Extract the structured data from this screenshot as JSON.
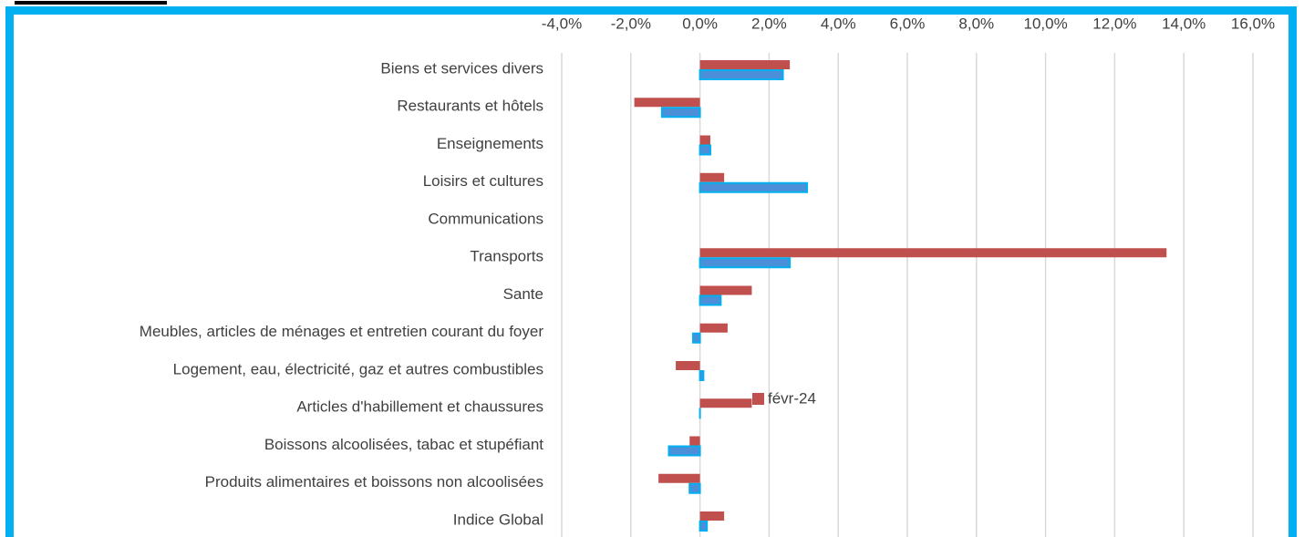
{
  "chart_data": {
    "type": "bar",
    "orientation": "horizontal",
    "categories": [
      "Biens et services divers",
      "Restaurants et hôtels",
      "Enseignements",
      "Loisirs et cultures",
      "Communications",
      "Transports",
      "Sante",
      "Meubles, articles de ménages et entretien courant du foyer",
      "Logement, eau, électricité, gaz et autres combustibles",
      "Articles d'habillement et chaussures",
      "Boissons alcoolisées, tabac et stupéfiant",
      "Produits alimentaires et boissons non alcoolisées",
      "Indice Global"
    ],
    "series": [
      {
        "name": "févr-24",
        "color": "#c0504d",
        "values": [
          2.6,
          -1.9,
          0.3,
          0.7,
          null,
          13.5,
          1.5,
          0.8,
          -0.7,
          1.5,
          -0.3,
          -1.2,
          0.7
        ]
      },
      {
        "color": "#4a8fd8",
        "values": [
          2.4,
          -1.1,
          0.3,
          3.1,
          null,
          2.6,
          0.6,
          -0.2,
          0.1,
          0.0,
          -0.9,
          -0.3,
          0.2
        ]
      }
    ],
    "xlim": [
      -4,
      16
    ],
    "xticks": [
      {
        "value": -4,
        "label": "-4,0%"
      },
      {
        "value": -2,
        "label": "-2,0%"
      },
      {
        "value": 0,
        "label": "0,0%"
      },
      {
        "value": 2,
        "label": "2,0%"
      },
      {
        "value": 4,
        "label": "4,0%"
      },
      {
        "value": 6,
        "label": "6,0%"
      },
      {
        "value": 8,
        "label": "8,0%"
      },
      {
        "value": 10,
        "label": "10,0%"
      },
      {
        "value": 12,
        "label": "12,0%"
      },
      {
        "value": 14,
        "label": "14,0%"
      },
      {
        "value": 16,
        "label": "16,0%"
      }
    ],
    "grid": true
  }
}
